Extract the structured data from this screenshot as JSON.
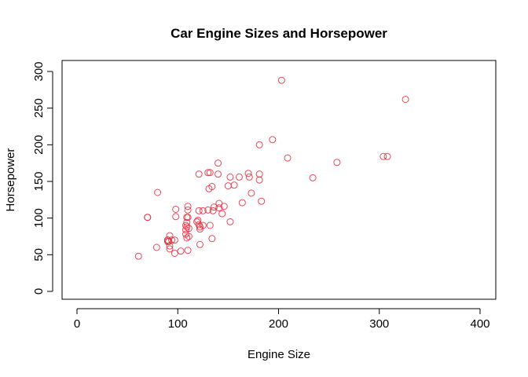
{
  "chart_data": {
    "type": "scatter",
    "title": "Car Engine Sizes and Horsepower",
    "xlabel": "Engine Size",
    "ylabel": "Horsepower",
    "xlim": [
      0,
      400
    ],
    "ylim": [
      0,
      300
    ],
    "xticks": [
      0,
      100,
      200,
      300,
      400
    ],
    "yticks": [
      0,
      50,
      100,
      150,
      200,
      250,
      300
    ],
    "point_color": "#e8283a",
    "marker": "open-circle",
    "grid": false,
    "points": [
      [
        61,
        48
      ],
      [
        79,
        60
      ],
      [
        80,
        135
      ],
      [
        70,
        101
      ],
      [
        70,
        101
      ],
      [
        90,
        70
      ],
      [
        90,
        70
      ],
      [
        91,
        68
      ],
      [
        92,
        76
      ],
      [
        92,
        62
      ],
      [
        92,
        58
      ],
      [
        94,
        70
      ],
      [
        97,
        52
      ],
      [
        97,
        70
      ],
      [
        98,
        102
      ],
      [
        98,
        112
      ],
      [
        103,
        55
      ],
      [
        90,
        68
      ],
      [
        108,
        78
      ],
      [
        108,
        84
      ],
      [
        108,
        90
      ],
      [
        109,
        94
      ],
      [
        109,
        73
      ],
      [
        109,
        88
      ],
      [
        109,
        101
      ],
      [
        110,
        101
      ],
      [
        110,
        111
      ],
      [
        110,
        116
      ],
      [
        110,
        56
      ],
      [
        111,
        86
      ],
      [
        111,
        75
      ],
      [
        119,
        95
      ],
      [
        120,
        97
      ],
      [
        121,
        91
      ],
      [
        121,
        110
      ],
      [
        121,
        160
      ],
      [
        122,
        85
      ],
      [
        122,
        88
      ],
      [
        122,
        64
      ],
      [
        125,
        90
      ],
      [
        125,
        110
      ],
      [
        130,
        111
      ],
      [
        130,
        162
      ],
      [
        131,
        140
      ],
      [
        132,
        90
      ],
      [
        132,
        162
      ],
      [
        134,
        143
      ],
      [
        134,
        72
      ],
      [
        135,
        110
      ],
      [
        136,
        115
      ],
      [
        140,
        175
      ],
      [
        140,
        160
      ],
      [
        141,
        114
      ],
      [
        141,
        120
      ],
      [
        144,
        106
      ],
      [
        146,
        116
      ],
      [
        150,
        144
      ],
      [
        152,
        95
      ],
      [
        152,
        156
      ],
      [
        156,
        145
      ],
      [
        161,
        156
      ],
      [
        164,
        121
      ],
      [
        170,
        161
      ],
      [
        171,
        156
      ],
      [
        173,
        134
      ],
      [
        181,
        160
      ],
      [
        181,
        200
      ],
      [
        181,
        152
      ],
      [
        183,
        123
      ],
      [
        194,
        207
      ],
      [
        203,
        288
      ],
      [
        209,
        182
      ],
      [
        234,
        155
      ],
      [
        258,
        176
      ],
      [
        304,
        184
      ],
      [
        308,
        184
      ],
      [
        326,
        262
      ]
    ]
  }
}
